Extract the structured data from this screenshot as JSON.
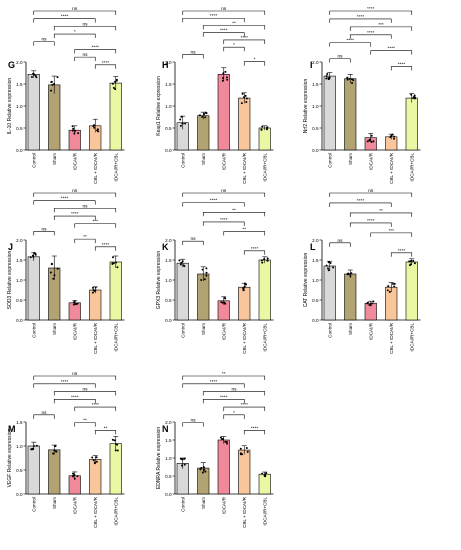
{
  "groups": [
    "Control",
    "Sham",
    "tDCAI/R",
    "CBL + tDCAI/R",
    "tDCAI/R+CBL"
  ],
  "colors": {
    "Control": "#d9d9d9",
    "Sham": "#b3a373",
    "tDCAI/R": "#f08a9a",
    "CBL + tDCAI/R": "#f9c59a",
    "tDCAI/R+CBL": "#ecf7a4",
    "line": "#000000"
  },
  "chart_data": [
    {
      "panel": "G",
      "type": "bar",
      "ylabel": "IL-10 Relative expression",
      "ylim": [
        0,
        2.0
      ],
      "yticks": [
        "0.0",
        "0.5",
        "1.0",
        "1.5",
        "2.0"
      ],
      "categories": [
        "Control",
        "Sham",
        "tDCAI/R",
        "CBL + tDCAI/R",
        "tDCAI/R+CBL"
      ],
      "values": [
        1.72,
        1.48,
        0.45,
        0.55,
        1.52
      ],
      "errors": [
        0.08,
        0.2,
        0.1,
        0.15,
        0.15
      ],
      "comparisons": [
        {
          "a": 0,
          "b": 4,
          "label": "ns"
        },
        {
          "a": 0,
          "b": 3,
          "label": "****"
        },
        {
          "a": 1,
          "b": 4,
          "label": "ns"
        },
        {
          "a": 1,
          "b": 3,
          "label": "*"
        },
        {
          "a": 0,
          "b": 1,
          "label": "ns"
        },
        {
          "a": 2,
          "b": 4,
          "label": "****"
        },
        {
          "a": 2,
          "b": 3,
          "label": "ns"
        },
        {
          "a": 3,
          "b": 4,
          "label": "****"
        }
      ]
    },
    {
      "panel": "H",
      "type": "bar",
      "ylabel": "Keap1 Relative expression",
      "ylim": [
        0,
        2.0
      ],
      "yticks": [
        "0.0",
        "0.5",
        "1.0",
        "1.5",
        "2.0"
      ],
      "categories": [
        "Control",
        "Sham",
        "tDCAI/R",
        "CBL + tDCAI/R",
        "tDCAI/R+CBL"
      ],
      "values": [
        0.62,
        0.78,
        1.72,
        1.18,
        0.5
      ],
      "errors": [
        0.15,
        0.08,
        0.15,
        0.12,
        0.05
      ],
      "comparisons": [
        {
          "a": 0,
          "b": 4,
          "label": "ns"
        },
        {
          "a": 0,
          "b": 3,
          "label": "****"
        },
        {
          "a": 1,
          "b": 4,
          "label": "**"
        },
        {
          "a": 1,
          "b": 3,
          "label": "****"
        },
        {
          "a": 2,
          "b": 4,
          "label": "****"
        },
        {
          "a": 2,
          "b": 3,
          "label": "*"
        },
        {
          "a": 0,
          "b": 1,
          "label": "ns"
        },
        {
          "a": 3,
          "b": 4,
          "label": "*"
        }
      ]
    },
    {
      "panel": "I",
      "type": "bar",
      "ylabel": "Nrf2 Relative expression",
      "ylim": [
        0,
        2.0
      ],
      "yticks": [
        "0.0",
        "0.5",
        "1.0",
        "1.5",
        "2.0"
      ],
      "categories": [
        "Control",
        "Sham",
        "tDCAI/R",
        "CBL + tDCAI/R",
        "tDCAI/R+CBL"
      ],
      "values": [
        1.68,
        1.62,
        0.28,
        0.3,
        1.18
      ],
      "errors": [
        0.08,
        0.1,
        0.1,
        0.06,
        0.1
      ],
      "comparisons": [
        {
          "a": 0,
          "b": 4,
          "label": "****"
        },
        {
          "a": 0,
          "b": 3,
          "label": "****"
        },
        {
          "a": 1,
          "b": 4,
          "label": "***"
        },
        {
          "a": 1,
          "b": 3,
          "label": "****"
        },
        {
          "a": 0,
          "b": 2,
          "label": "****"
        },
        {
          "a": 2,
          "b": 4,
          "label": "****"
        },
        {
          "a": 0,
          "b": 1,
          "label": "ns"
        },
        {
          "a": 3,
          "b": 4,
          "label": "****"
        }
      ]
    },
    {
      "panel": "J",
      "type": "bar",
      "ylabel": "SOD3 Relative expression",
      "ylim": [
        0,
        2.0
      ],
      "yticks": [
        "0.0",
        "0.5",
        "1.0",
        "1.5",
        "2.0"
      ],
      "categories": [
        "Control",
        "Sham",
        "tDCAI/R",
        "CBL + tDCAI/R",
        "tDCAI/R+CBL"
      ],
      "values": [
        1.58,
        1.3,
        0.43,
        0.75,
        1.45
      ],
      "errors": [
        0.1,
        0.3,
        0.05,
        0.08,
        0.15
      ],
      "comparisons": [
        {
          "a": 0,
          "b": 4,
          "label": "ns"
        },
        {
          "a": 0,
          "b": 3,
          "label": "****"
        },
        {
          "a": 1,
          "b": 4,
          "label": "ns"
        },
        {
          "a": 1,
          "b": 3,
          "label": "****"
        },
        {
          "a": 2,
          "b": 4,
          "label": "***"
        },
        {
          "a": 0,
          "b": 1,
          "label": "ns"
        },
        {
          "a": 2,
          "b": 3,
          "label": "**"
        },
        {
          "a": 3,
          "b": 4,
          "label": "****"
        }
      ]
    },
    {
      "panel": "K",
      "type": "bar",
      "ylabel": "GPX3 Relative expression",
      "ylim": [
        0,
        2.0
      ],
      "yticks": [
        "0.0",
        "0.5",
        "1.0",
        "1.5",
        "2.0"
      ],
      "categories": [
        "Control",
        "Sham",
        "tDCAI/R",
        "CBL + tDCAI/R",
        "tDCAI/R+CBL"
      ],
      "values": [
        1.42,
        1.15,
        0.48,
        0.82,
        1.5
      ],
      "errors": [
        0.1,
        0.18,
        0.1,
        0.1,
        0.08
      ],
      "comparisons": [
        {
          "a": 0,
          "b": 4,
          "label": "ns"
        },
        {
          "a": 0,
          "b": 3,
          "label": "****"
        },
        {
          "a": 1,
          "b": 4,
          "label": "**"
        },
        {
          "a": 1,
          "b": 3,
          "label": "****"
        },
        {
          "a": 2,
          "b": 4,
          "label": "**"
        },
        {
          "a": 0,
          "b": 1,
          "label": "ns"
        },
        {
          "a": 3,
          "b": 4,
          "label": "****"
        }
      ]
    },
    {
      "panel": "L",
      "type": "bar",
      "ylabel": "CAT Relative expression",
      "ylim": [
        0,
        2.0
      ],
      "yticks": [
        "0.0",
        "0.5",
        "1.0",
        "1.5",
        "2.0"
      ],
      "categories": [
        "Control",
        "Sham",
        "tDCAI/R",
        "CBL + tDCAI/R",
        "tDCAI/R+CBL"
      ],
      "values": [
        1.35,
        1.15,
        0.42,
        0.82,
        1.45
      ],
      "errors": [
        0.12,
        0.1,
        0.05,
        0.12,
        0.08
      ],
      "comparisons": [
        {
          "a": 0,
          "b": 4,
          "label": "ns"
        },
        {
          "a": 0,
          "b": 3,
          "label": "****"
        },
        {
          "a": 1,
          "b": 4,
          "label": "**"
        },
        {
          "a": 1,
          "b": 3,
          "label": "****"
        },
        {
          "a": 2,
          "b": 4,
          "label": "***"
        },
        {
          "a": 0,
          "b": 1,
          "label": "ns"
        },
        {
          "a": 3,
          "b": 4,
          "label": "****"
        }
      ]
    },
    {
      "panel": "M",
      "type": "bar",
      "ylabel": "VEGF Relative expression",
      "ylim": [
        0,
        1.5
      ],
      "yticks": [
        "0.0",
        "0.5",
        "1.0",
        "1.5"
      ],
      "categories": [
        "Control",
        "Sham",
        "tDCAI/R",
        "CBL + tDCAI/R",
        "tDCAI/R+CBL"
      ],
      "values": [
        1.0,
        0.92,
        0.38,
        0.72,
        1.05
      ],
      "errors": [
        0.08,
        0.1,
        0.08,
        0.08,
        0.15
      ],
      "comparisons": [
        {
          "a": 0,
          "b": 4,
          "label": "ns"
        },
        {
          "a": 0,
          "b": 3,
          "label": "****"
        },
        {
          "a": 1,
          "b": 4,
          "label": "ns"
        },
        {
          "a": 1,
          "b": 3,
          "label": "****"
        },
        {
          "a": 2,
          "b": 4,
          "label": "****"
        },
        {
          "a": 0,
          "b": 1,
          "label": "ns"
        },
        {
          "a": 2,
          "b": 3,
          "label": "**"
        },
        {
          "a": 3,
          "b": 4,
          "label": "**"
        }
      ]
    },
    {
      "panel": "N",
      "type": "bar",
      "ylabel": "EDNRA Relative expression",
      "ylim": [
        0,
        2.0
      ],
      "yticks": [
        "0.0",
        "0.5",
        "1.0",
        "1.5",
        "2.0"
      ],
      "categories": [
        "Control",
        "Sham",
        "tDCAI/R",
        "CBL + tDCAI/R",
        "tDCAI/R+CBL"
      ],
      "values": [
        0.85,
        0.72,
        1.5,
        1.22,
        0.55
      ],
      "errors": [
        0.15,
        0.15,
        0.1,
        0.12,
        0.06
      ],
      "comparisons": [
        {
          "a": 0,
          "b": 4,
          "label": "**"
        },
        {
          "a": 0,
          "b": 3,
          "label": "****"
        },
        {
          "a": 1,
          "b": 4,
          "label": "ns"
        },
        {
          "a": 1,
          "b": 3,
          "label": "****"
        },
        {
          "a": 2,
          "b": 4,
          "label": "****"
        },
        {
          "a": 2,
          "b": 3,
          "label": "*"
        },
        {
          "a": 0,
          "b": 1,
          "label": "ns"
        },
        {
          "a": 3,
          "b": 4,
          "label": "****"
        }
      ]
    }
  ]
}
